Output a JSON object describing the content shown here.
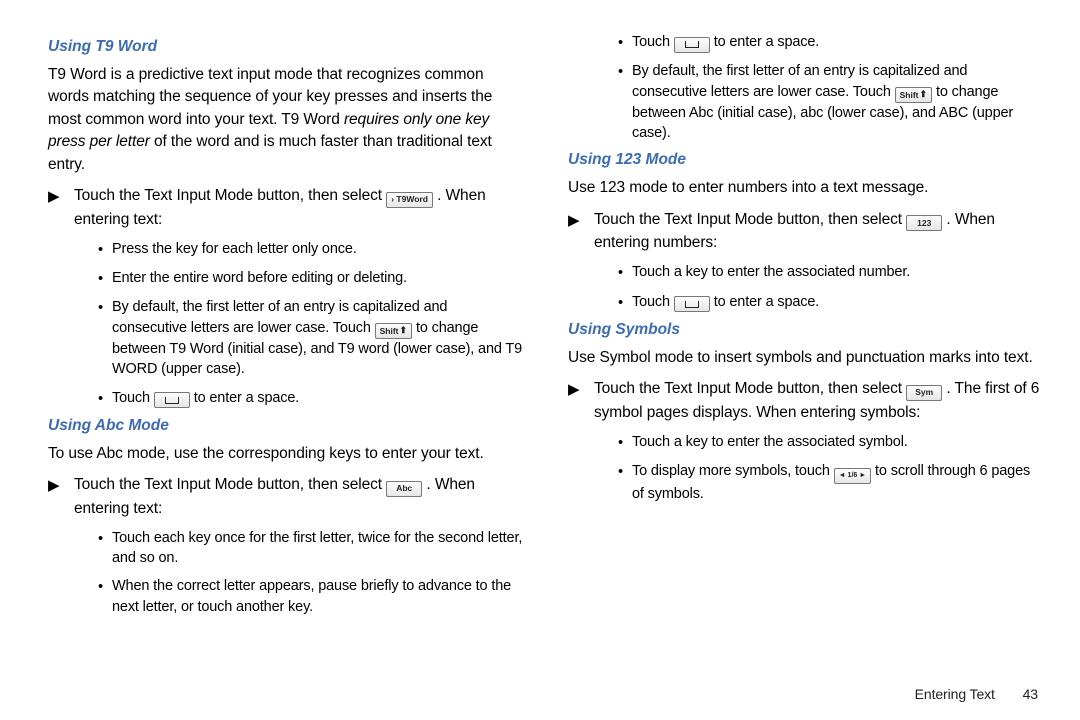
{
  "footer": {
    "section": "Entering Text",
    "page": "43"
  },
  "icons": {
    "t9word": "› T9Word",
    "abc": "Abc",
    "n123": "123",
    "sym": "Sym",
    "shift_label": "Shift",
    "pager": "◄ 1/6 ►"
  },
  "left": {
    "h_t9": "Using T9 Word",
    "t9_intro_a": "T9 Word is a predictive text input mode that recognizes common words matching the sequence of your key presses and inserts the most common word into your text. T9 Word ",
    "t9_intro_em": "requires only one key press per letter",
    "t9_intro_b": " of the word and is much faster than traditional text entry.",
    "t9_step": "Touch the Text Input Mode button, then select ",
    "t9_step_tail": " . When entering text:",
    "t9_b1": "Press the key for each letter only once.",
    "t9_b2": "Enter the entire word before editing or deleting.",
    "t9_b3a": "By default, the first letter of an entry is capitalized and consecutive letters are lower case. Touch ",
    "t9_b3b": " to change between T9 Word (initial case), and T9 word (lower case), and T9 WORD (upper case).",
    "t9_b4a": "Touch ",
    "t9_b4b": " to enter a space.",
    "h_abc": "Using Abc Mode",
    "abc_intro": "To use Abc mode, use the corresponding keys to enter your text.",
    "abc_step": "Touch the Text Input Mode button, then select ",
    "abc_step_tail": " . When entering text:",
    "abc_b1": "Touch each key once for the first letter, twice for the second letter, and so on.",
    "abc_b2": "When the correct letter appears, pause briefly to advance to the next letter, or touch another key."
  },
  "right": {
    "r_b1a": "Touch ",
    "r_b1b": " to enter a space.",
    "r_b2a": "By default, the first letter of an entry is capitalized and consecutive letters are lower case. Touch ",
    "r_b2b": " to change between Abc (initial case), abc (lower case), and ABC (upper case).",
    "h_123": "Using 123 Mode",
    "n123_intro": "Use 123 mode to enter numbers into a text message.",
    "n123_step": "Touch the Text Input Mode button, then select ",
    "n123_step_tail": " . When entering numbers:",
    "n123_b1": "Touch a key to enter the associated number.",
    "n123_b2a": "Touch ",
    "n123_b2b": " to enter a space.",
    "h_sym": "Using Symbols",
    "sym_intro": "Use Symbol mode to insert symbols and punctuation marks into text.",
    "sym_step": "Touch the Text Input Mode button, then select ",
    "sym_step_tail": " . The first of 6 symbol pages displays. When entering symbols:",
    "sym_b1": "Touch a key to enter the associated symbol.",
    "sym_b2a": "To display more symbols, touch ",
    "sym_b2b": " to scroll through 6 pages of symbols."
  }
}
